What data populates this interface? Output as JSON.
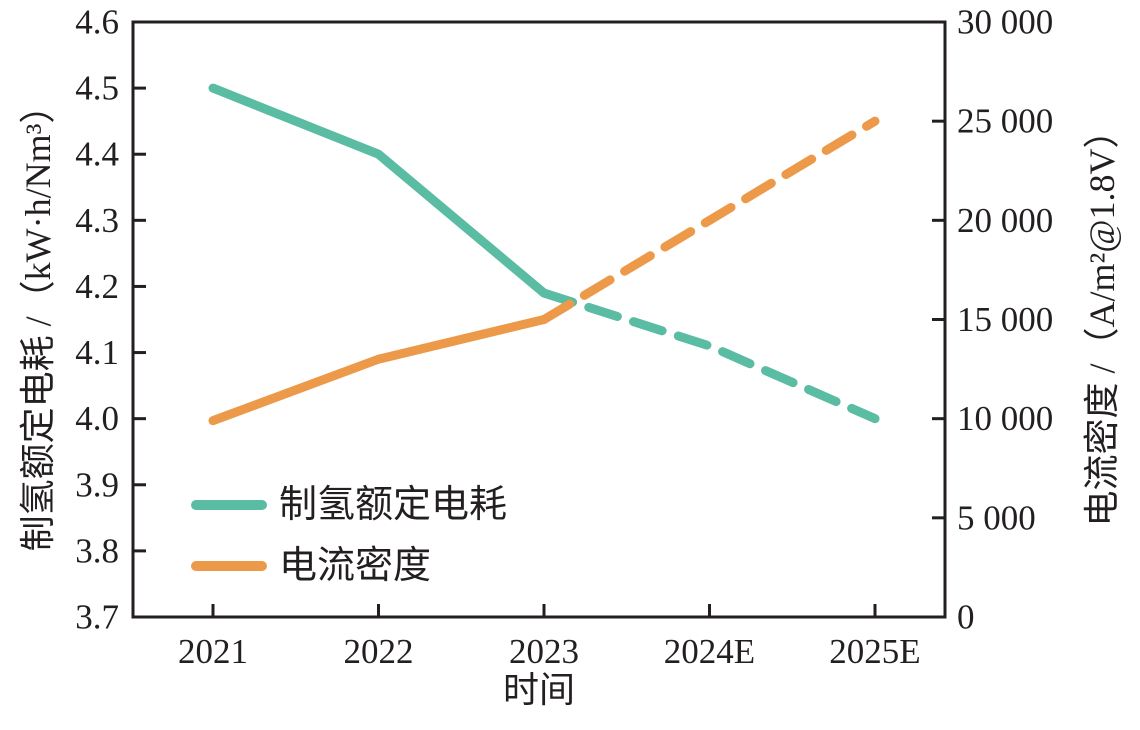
{
  "figure": {
    "background": "#ffffff",
    "axis_color": "#231f20",
    "text_color": "#231f20"
  },
  "chart_data": {
    "type": "line",
    "title": "",
    "categories": [
      "2021",
      "2022",
      "2023",
      "2024E",
      "2025E"
    ],
    "x_axis": {
      "label": "时间"
    },
    "left_axis": {
      "label": "制氢额定电耗 /（kW·h/Nm³）",
      "min": 3.7,
      "max": 4.6,
      "step": 0.1,
      "tick_labels": [
        "3.7",
        "3.8",
        "3.9",
        "4.0",
        "4.1",
        "4.2",
        "4.3",
        "4.4",
        "4.5",
        "4.6"
      ]
    },
    "right_axis": {
      "label": "电流密度 /（A/m²@1.8V）",
      "min": 0,
      "max": 30000,
      "step": 5000,
      "tick_labels": [
        "0",
        "5 000",
        "10 000",
        "15 000",
        "20 000",
        "25 000",
        "30 000"
      ]
    },
    "series": [
      {
        "name": "制氢额定电耗",
        "axis": "left",
        "color": "#5abca2",
        "line_style": "solid-then-dashed",
        "dashed_from_index": 2,
        "values": [
          4.5,
          4.4,
          4.19,
          4.11,
          4.0
        ]
      },
      {
        "name": "电流密度",
        "axis": "right",
        "color": "#ec9a49",
        "line_style": "solid-then-dashed",
        "dashed_from_index": 2,
        "values": [
          9900,
          13000,
          15000,
          20000,
          25000
        ]
      }
    ],
    "grid": false,
    "legend": {
      "position": "inside-lower-left",
      "entries": [
        "制氢额定电耗",
        "电流密度"
      ]
    }
  }
}
